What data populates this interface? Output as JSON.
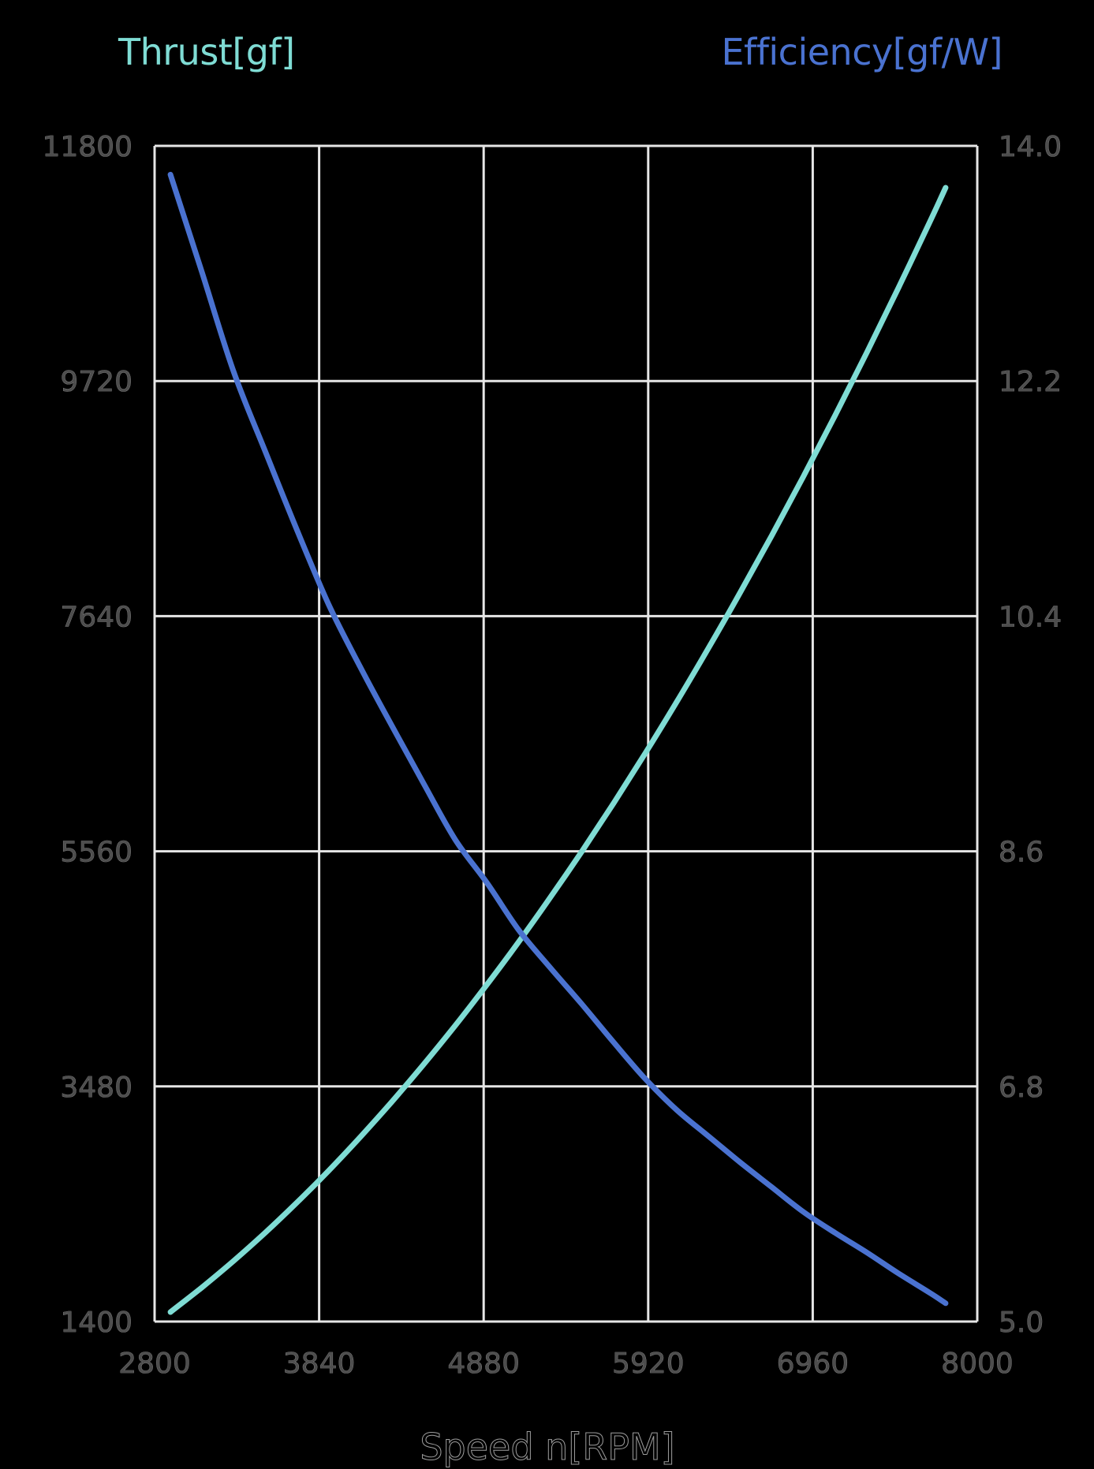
{
  "chart_data": {
    "type": "line",
    "title": "",
    "xlabel": "Speed n[RPM]",
    "ylabel_left": "Thrust[gf]",
    "ylabel_right": "Efficiency[gf/W]",
    "xlim": [
      2800,
      8000
    ],
    "ylim_left": [
      1400,
      11800
    ],
    "ylim_right": [
      5.0,
      14.0
    ],
    "x_ticks": [
      "2800",
      "3840",
      "4880",
      "5920",
      "6960",
      "8000"
    ],
    "y_ticks_left": [
      "11800",
      "9720",
      "7640",
      "5560",
      "3480",
      "1400"
    ],
    "y_ticks_right": [
      "14.0",
      "12.2",
      "10.4",
      "8.6",
      "6.8",
      "5.0"
    ],
    "grid": true,
    "legend_position": "top (axis titles colored per series)",
    "x": [
      2900,
      3100,
      3300,
      3500,
      3700,
      3900,
      4100,
      4300,
      4500,
      4700,
      4900,
      5100,
      5300,
      5500,
      5700,
      5900,
      6100,
      6300,
      6500,
      6700,
      6900,
      7100,
      7300,
      7500,
      7700,
      7800
    ],
    "series": [
      {
        "name": "Thrust[gf]",
        "axis": "left",
        "color": "#7fdcd4",
        "values": [
          1484,
          1703,
          1937,
          2187,
          2453,
          2734,
          3032,
          3345,
          3674,
          4018,
          4379,
          4756,
          5149,
          5557,
          5982,
          6424,
          6881,
          7355,
          7845,
          8351,
          8873,
          9412,
          9967,
          10539,
          11127,
          11430
        ]
      },
      {
        "name": "Efficiency[gf/W]",
        "axis": "right",
        "color": "#4a72d0",
        "values": [
          13.78,
          13.03,
          12.27,
          11.66,
          11.06,
          10.49,
          10.01,
          9.56,
          9.12,
          8.69,
          8.36,
          8.0,
          7.71,
          7.43,
          7.14,
          6.86,
          6.62,
          6.42,
          6.22,
          6.03,
          5.84,
          5.68,
          5.53,
          5.37,
          5.22,
          5.14
        ]
      }
    ]
  },
  "colors": {
    "background": "#000000",
    "grid": "#e6e6e6",
    "thrust": "#7fdcd4",
    "efficiency": "#4a72d0",
    "tick_text": "#4d4d4d"
  }
}
